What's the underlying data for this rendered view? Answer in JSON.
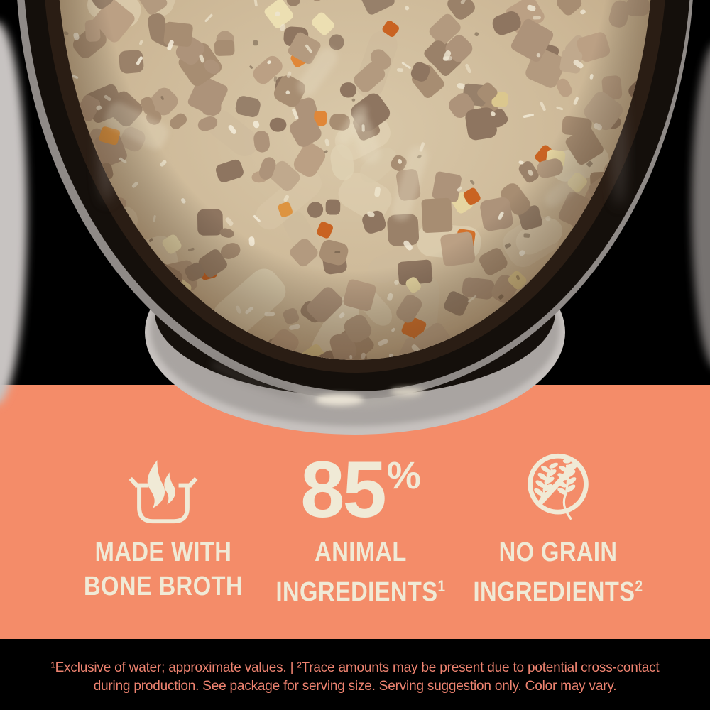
{
  "colors": {
    "salmon_band": "#F48C69",
    "cream_text": "#F0EAD6",
    "background": "#000000",
    "disclaimer_text": "#EE8370"
  },
  "photo": {
    "subject": "black bowl of chunky stew with meat, carrot and potato pieces"
  },
  "features": [
    {
      "icon": "pot-steam-icon",
      "line1": "MADE WITH",
      "line2": "BONE BROTH",
      "sup": ""
    },
    {
      "stat": "85",
      "unit": "%",
      "line1": "ANIMAL",
      "line2": "INGREDIENTS",
      "sup": "1"
    },
    {
      "icon": "no-grain-icon",
      "line1": "NO GRAIN",
      "line2": "INGREDIENTS",
      "sup": "2"
    }
  ],
  "disclaimer": {
    "line1": "¹Exclusive of water; approximate values. | ²Trace amounts may be present due to potential cross-contact",
    "line2": "during production. See package for serving size. Serving suggestion only. Color may vary."
  }
}
